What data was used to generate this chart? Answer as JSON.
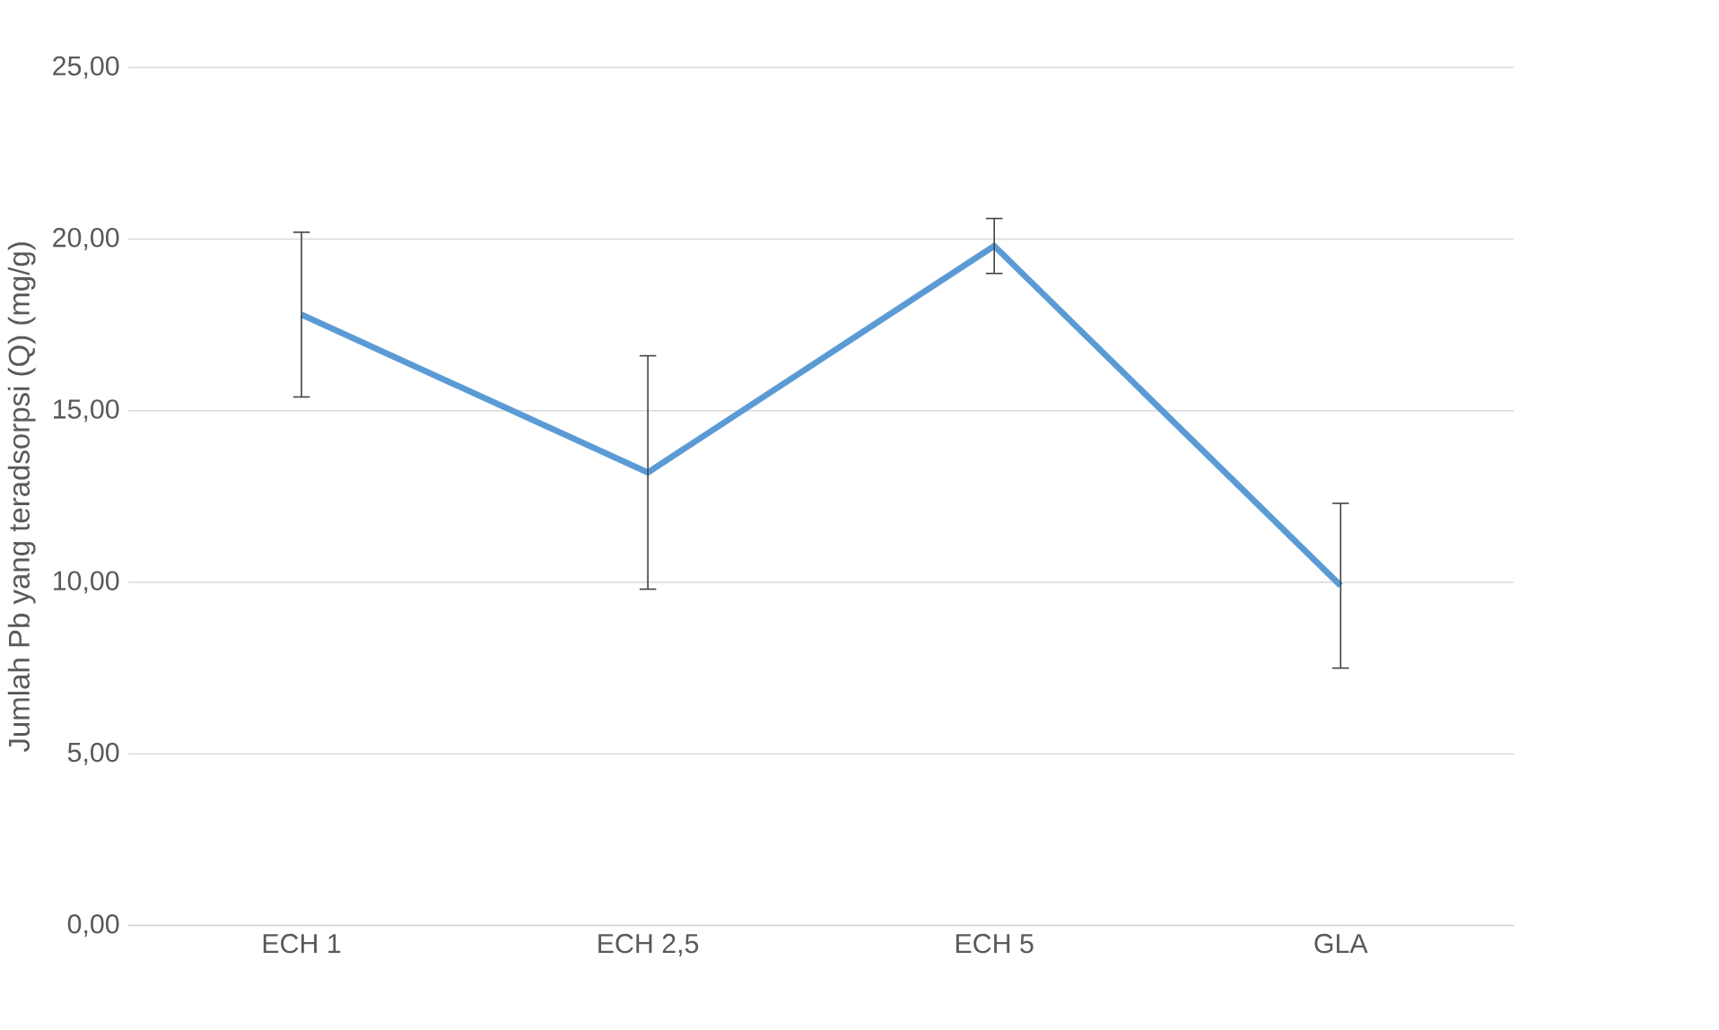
{
  "chart_data": {
    "type": "line",
    "ylabel": "Jumlah Pb yang teradsorpsi (Q) (mg/g)",
    "categories": [
      "ECH 1",
      "ECH 2,5",
      "ECH 5",
      "GLA"
    ],
    "series": [
      {
        "color": "#5b9bd5",
        "values": [
          17.8,
          13.2,
          19.8,
          9.9
        ],
        "errors": [
          2.4,
          3.4,
          0.8,
          2.4
        ]
      }
    ],
    "ylim": [
      0,
      25
    ],
    "yticks": [
      {
        "value": 0,
        "label": "0,00"
      },
      {
        "value": 5,
        "label": "5,00"
      },
      {
        "value": 10,
        "label": "10,00"
      },
      {
        "value": 15,
        "label": "15,00"
      },
      {
        "value": 20,
        "label": "20,00"
      },
      {
        "value": 25,
        "label": "25,00"
      }
    ],
    "grid": "y",
    "marker": "none",
    "line_style": "solid"
  }
}
